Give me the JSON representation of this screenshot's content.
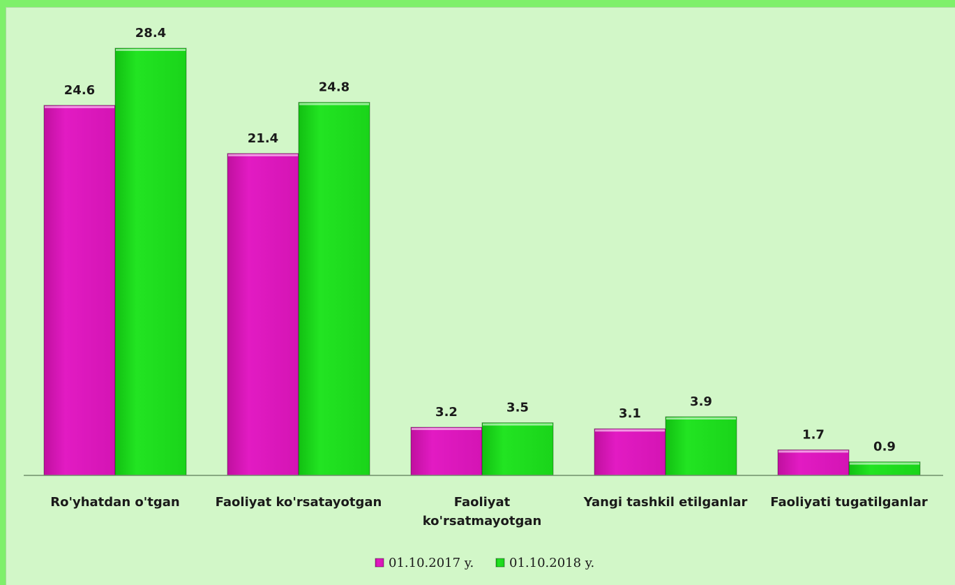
{
  "chart_data": {
    "type": "bar",
    "categories": [
      [
        "Ro'yhatdan o'tgan"
      ],
      [
        "Faoliyat ko'rsatayotgan"
      ],
      [
        "Faoliyat",
        "ko'rsatmayotgan"
      ],
      [
        "Yangi tashkil etilganlar"
      ],
      [
        "Faoliyati tugatilganlar"
      ]
    ],
    "series": [
      {
        "name": "01.10.2017 y.",
        "color": "#e21bc3",
        "values": [
          24.6,
          21.4,
          3.2,
          3.1,
          1.7
        ]
      },
      {
        "name": "01.10.2018 y.",
        "color": "#22e422",
        "values": [
          28.4,
          24.8,
          3.5,
          3.9,
          0.9
        ]
      }
    ],
    "ylim": [
      0,
      28.4
    ],
    "grid": false,
    "legend_position": "bottom",
    "data_labels": true
  }
}
